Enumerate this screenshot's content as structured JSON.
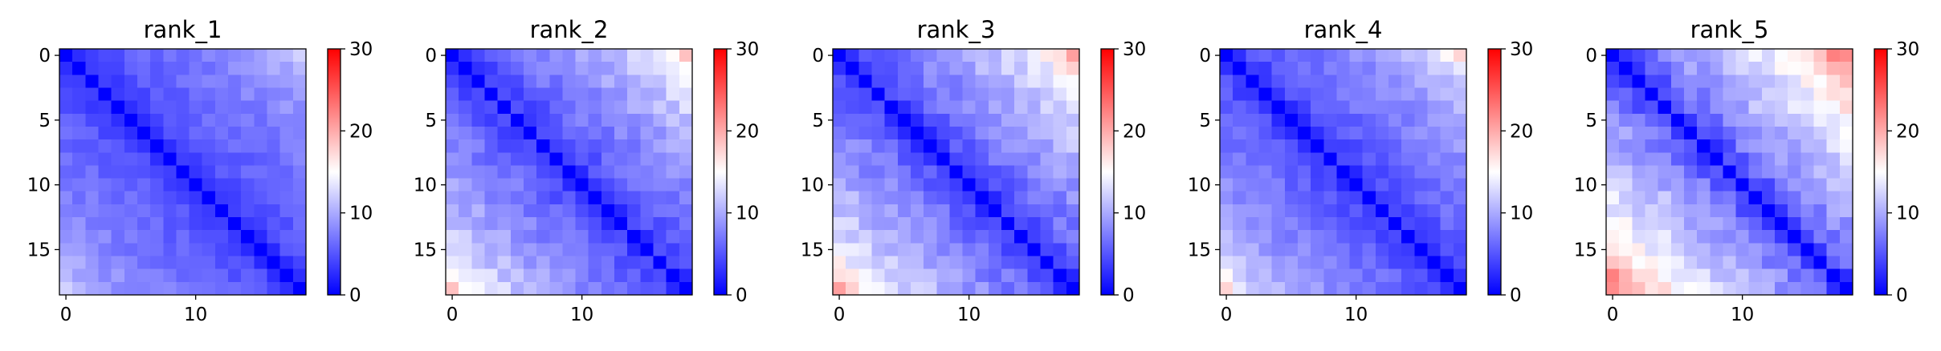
{
  "figure": {
    "background": "#ffffff"
  },
  "colormap": {
    "name": "bwr",
    "min_color": "#0000ff",
    "mid_color": "#ffffff",
    "max_color": "#ff0000"
  },
  "chart_data": [
    {
      "type": "heatmap",
      "title": "rank_1",
      "size": 19,
      "profile": [
        0,
        3.2,
        4.2,
        4.8,
        5.3,
        5.7,
        6.0,
        6.3,
        6.6,
        6.9,
        7.2,
        7.5,
        7.9,
        8.3,
        8.8,
        9.4,
        10.2,
        11.2,
        12.4
      ],
      "noise": 1.1,
      "seed": 11,
      "xticks": [
        0,
        10
      ],
      "yticks": [
        0,
        5,
        10,
        15
      ],
      "colorbar": {
        "vmin": 0,
        "vmax": 30,
        "ticks": [
          0,
          10,
          20,
          30
        ]
      }
    },
    {
      "type": "heatmap",
      "title": "rank_2",
      "size": 19,
      "profile": [
        0,
        3.5,
        4.7,
        5.5,
        6.1,
        6.7,
        7.2,
        7.7,
        8.2,
        8.8,
        9.4,
        10.0,
        10.7,
        11.4,
        12.2,
        13.1,
        14.4,
        16.0,
        18.2
      ],
      "noise": 1.4,
      "seed": 23,
      "xticks": [
        0,
        10
      ],
      "yticks": [
        0,
        5,
        10,
        15
      ],
      "colorbar": {
        "vmin": 0,
        "vmax": 30,
        "ticks": [
          0,
          10,
          20,
          30
        ]
      }
    },
    {
      "type": "heatmap",
      "title": "rank_3",
      "size": 19,
      "profile": [
        0,
        3.6,
        5.0,
        5.9,
        6.6,
        7.2,
        7.8,
        8.3,
        8.9,
        9.5,
        10.1,
        10.8,
        11.5,
        12.3,
        13.2,
        14.2,
        15.5,
        17.2,
        19.5
      ],
      "noise": 1.5,
      "seed": 37,
      "xticks": [
        0,
        10
      ],
      "yticks": [
        0,
        5,
        10,
        15
      ],
      "colorbar": {
        "vmin": 0,
        "vmax": 30,
        "ticks": [
          0,
          10,
          20,
          30
        ]
      }
    },
    {
      "type": "heatmap",
      "title": "rank_4",
      "size": 19,
      "profile": [
        0,
        3.3,
        4.4,
        5.1,
        5.7,
        6.2,
        6.6,
        7.0,
        7.4,
        7.8,
        8.2,
        8.7,
        9.2,
        9.8,
        10.5,
        11.4,
        12.6,
        14.2,
        16.5
      ],
      "noise": 1.2,
      "seed": 41,
      "xticks": [
        0,
        10
      ],
      "yticks": [
        0,
        5,
        10,
        15
      ],
      "colorbar": {
        "vmin": 0,
        "vmax": 30,
        "ticks": [
          0,
          10,
          20,
          30
        ]
      }
    },
    {
      "type": "heatmap",
      "title": "rank_5",
      "size": 19,
      "profile": [
        0,
        4.0,
        5.7,
        7.0,
        8.0,
        8.9,
        9.7,
        10.4,
        11.1,
        11.8,
        12.5,
        13.3,
        14.2,
        15.2,
        16.4,
        17.8,
        19.5,
        21.3,
        23.2
      ],
      "noise": 1.8,
      "seed": 53,
      "xticks": [
        0,
        10
      ],
      "yticks": [
        0,
        5,
        10,
        15
      ],
      "colorbar": {
        "vmin": 0,
        "vmax": 30,
        "ticks": [
          0,
          10,
          20,
          30
        ]
      }
    }
  ]
}
